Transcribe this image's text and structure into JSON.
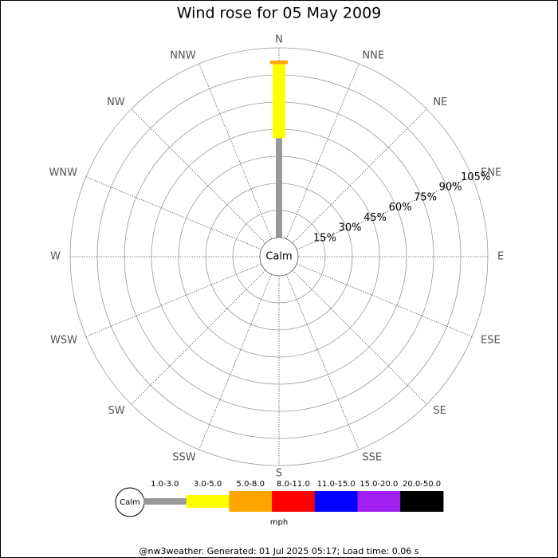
{
  "chart_data": {
    "type": "windrose",
    "title": "Wind rose for 05 May 2009",
    "center_label": "Calm",
    "directions": [
      "N",
      "NNE",
      "NE",
      "ENE",
      "E",
      "ESE",
      "SE",
      "SSE",
      "S",
      "SSW",
      "SW",
      "WSW",
      "W",
      "WNW",
      "NW",
      "NNW"
    ],
    "rlim": [
      0,
      105
    ],
    "rticks": [
      {
        "value": 15,
        "label": "15%"
      },
      {
        "value": 30,
        "label": "30%"
      },
      {
        "value": 45,
        "label": "45%"
      },
      {
        "value": 60,
        "label": "60%"
      },
      {
        "value": 75,
        "label": "75%"
      },
      {
        "value": 90,
        "label": "90%"
      },
      {
        "value": 105,
        "label": "105%"
      }
    ],
    "series": [
      {
        "name": "1.0-3.0",
        "color": "#999999",
        "values": [
          55,
          0,
          0,
          0,
          0,
          0,
          0,
          0,
          0,
          0,
          0,
          0,
          0,
          0,
          0,
          0
        ]
      },
      {
        "name": "3.0-5.0",
        "color": "#ffff00",
        "values": [
          41,
          0,
          0,
          0,
          0,
          0,
          0,
          0,
          0,
          0,
          0,
          0,
          0,
          0,
          0,
          0
        ]
      },
      {
        "name": "5.0-8.0",
        "color": "#ffa500",
        "values": [
          2,
          0,
          0,
          0,
          0,
          0,
          0,
          0,
          0,
          0,
          0,
          0,
          0,
          0,
          0,
          0
        ]
      },
      {
        "name": "8.0-11.0",
        "color": "#ff0000",
        "values": [
          0,
          0,
          0,
          0,
          0,
          0,
          0,
          0,
          0,
          0,
          0,
          0,
          0,
          0,
          0,
          0
        ]
      },
      {
        "name": "11.0-15.0",
        "color": "#0000ff",
        "values": [
          0,
          0,
          0,
          0,
          0,
          0,
          0,
          0,
          0,
          0,
          0,
          0,
          0,
          0,
          0,
          0
        ]
      },
      {
        "name": "15.0-20.0",
        "color": "#a020f0",
        "values": [
          0,
          0,
          0,
          0,
          0,
          0,
          0,
          0,
          0,
          0,
          0,
          0,
          0,
          0,
          0,
          0
        ]
      },
      {
        "name": "20.0-50.0",
        "color": "#000000",
        "values": [
          0,
          0,
          0,
          0,
          0,
          0,
          0,
          0,
          0,
          0,
          0,
          0,
          0,
          0,
          0,
          0
        ]
      }
    ],
    "unit": "mph",
    "footer": "@nw3weather. Generated: 01 Jul 2025 05:17; Load time: 0.06 s"
  }
}
